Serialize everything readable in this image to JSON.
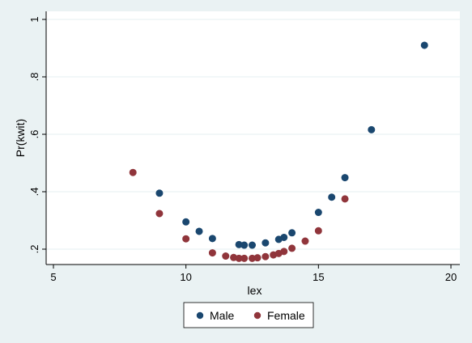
{
  "chart_data": {
    "type": "scatter",
    "xlabel": "lex",
    "ylabel": "Pr(kwit)",
    "xlim": [
      5,
      20
    ],
    "ylim": [
      0.2,
      1
    ],
    "xticks": [
      5,
      10,
      15,
      20
    ],
    "xtick_labels": [
      "5",
      "10",
      "15",
      "20"
    ],
    "yticks": [
      0.2,
      0.4,
      0.6,
      0.8,
      1
    ],
    "ytick_labels": [
      ".2",
      ".4",
      ".6",
      ".8",
      "1"
    ],
    "grid": true,
    "legend_position": "bottom",
    "series": [
      {
        "name": "Male",
        "color": "#1a476f",
        "x": [
          9,
          10,
          10.5,
          11,
          12,
          12.2,
          12.5,
          13,
          13.5,
          13.7,
          14,
          15,
          15.5,
          16,
          17,
          19
        ],
        "y": [
          0.395,
          0.295,
          0.262,
          0.237,
          0.216,
          0.214,
          0.214,
          0.222,
          0.234,
          0.241,
          0.257,
          0.328,
          0.381,
          0.449,
          0.616,
          0.91
        ]
      },
      {
        "name": "Female",
        "color": "#90353b",
        "x": [
          8,
          9,
          10,
          11,
          11.5,
          11.8,
          12,
          12.2,
          12.5,
          12.7,
          13,
          13.3,
          13.5,
          13.7,
          14,
          14.5,
          15,
          16
        ],
        "y": [
          0.467,
          0.324,
          0.236,
          0.187,
          0.176,
          0.171,
          0.168,
          0.168,
          0.168,
          0.17,
          0.174,
          0.18,
          0.185,
          0.192,
          0.203,
          0.228,
          0.264,
          0.375
        ]
      }
    ]
  }
}
